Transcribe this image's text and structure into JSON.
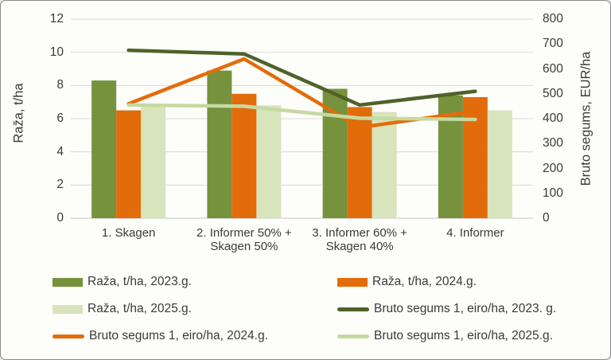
{
  "chart_data": {
    "type": "combo-bar-line",
    "title": "",
    "xlabel": "",
    "ylabel_left": "Raža, t/ha",
    "ylabel_right": "Bruto segums, EUR/ha",
    "ylim_left": [
      0,
      12
    ],
    "ylim_right": [
      0,
      800
    ],
    "yticks_left": [
      0,
      2,
      4,
      6,
      8,
      10,
      12
    ],
    "yticks_right": [
      0,
      100,
      200,
      300,
      400,
      500,
      600,
      700,
      800
    ],
    "grid": true,
    "legend_position": "bottom",
    "categories": [
      "1. Skagen",
      "2. Informer 50% + Skagen 50%",
      "3. Informer 60% + Skagen 40%",
      "4. Informer"
    ],
    "bar_series": [
      {
        "name": "Raža, t/ha, 2023.g.",
        "axis": "left",
        "color": "#76923C",
        "values": [
          8.3,
          8.9,
          7.8,
          7.4
        ]
      },
      {
        "name": "Raža, t/ha, 2024.g.",
        "axis": "left",
        "color": "#E36C0A",
        "values": [
          6.5,
          7.5,
          6.7,
          7.3
        ]
      },
      {
        "name": "Raža, t/ha, 2025.g.",
        "axis": "left",
        "color": "#D7E4BC",
        "values": [
          6.8,
          6.8,
          6.4,
          6.5
        ]
      }
    ],
    "line_series": [
      {
        "name": "Bruto segums 1, eiro/ha, 2023. g.",
        "axis": "right",
        "color": "#4F6228",
        "values": [
          675,
          660,
          455,
          510
        ]
      },
      {
        "name": "Bruto segums 1, eiro/ha, 2024.g.",
        "axis": "right",
        "color": "#E36C0A",
        "values": [
          460,
          640,
          365,
          430
        ]
      },
      {
        "name": "Bruto segums 1, eiro/ha, 2025.g.",
        "axis": "right",
        "color": "#C6D9A0",
        "values": [
          455,
          450,
          402,
          397
        ]
      }
    ]
  },
  "axes": {
    "left_title": "Raža, t/ha",
    "right_title": "Bruto segums, EUR/ha"
  },
  "legend": {
    "items": [
      {
        "label": "Raža, t/ha, 2023.g.",
        "swatch": "bar",
        "color": "#76923C"
      },
      {
        "label": "Raža, t/ha, 2024.g.",
        "swatch": "bar",
        "color": "#E36C0A"
      },
      {
        "label": "Raža, t/ha, 2025.g.",
        "swatch": "bar",
        "color": "#D7E4BC"
      },
      {
        "label": "Bruto segums 1, eiro/ha, 2023. g.",
        "swatch": "line",
        "color": "#4F6228"
      },
      {
        "label": "Bruto segums 1, eiro/ha, 2024.g.",
        "swatch": "line",
        "color": "#E36C0A"
      },
      {
        "label": "Bruto segums 1, eiro/ha, 2025.g.",
        "swatch": "line",
        "color": "#C6D9A0"
      }
    ]
  },
  "style": {
    "gridline_color": "#D9D9D9",
    "baseline_color": "#C6C6C6",
    "background": "#FDFDFA"
  }
}
